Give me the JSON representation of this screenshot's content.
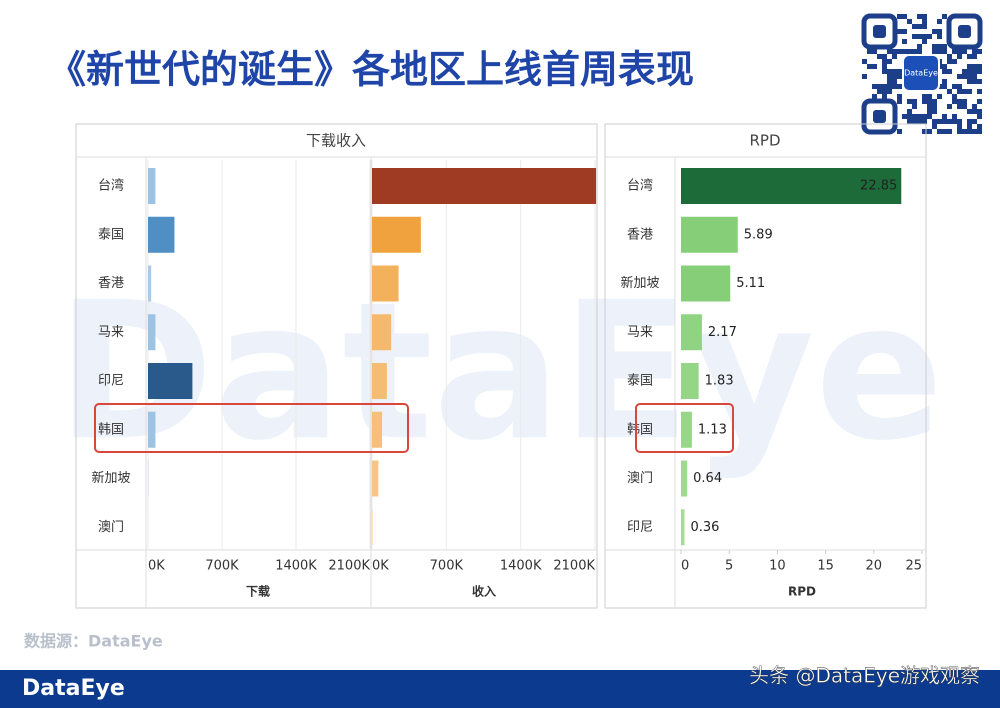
{
  "title": "《新世代的诞生》各地区上线首周表现",
  "source": "数据源：DataEye",
  "brand": "DataEye",
  "credit": "头条 @DataEye游戏观察",
  "watermark": "DataEye",
  "qr_label": "DataEye",
  "chart_data": [
    {
      "type": "hbar",
      "title": "下载收入",
      "xlabel": "下载",
      "categories": [
        "台湾",
        "泰国",
        "香港",
        "马来",
        "印尼",
        "韩国",
        "新加坡",
        "澳门"
      ],
      "values": [
        70000,
        250000,
        30000,
        70000,
        420000,
        70000,
        5000,
        1000
      ],
      "colors": [
        "#9cc3e4",
        "#4f8fc4",
        "#a9cbe8",
        "#9cc3e4",
        "#2a5a8c",
        "#9cc3e4",
        "#b8d4ec",
        "#bcd6ee"
      ],
      "xlim": [
        0,
        2100000
      ],
      "xticks": [
        {
          "value": 0,
          "label": "0K"
        },
        {
          "value": 700000,
          "label": "700K"
        },
        {
          "value": 1400000,
          "label": "1400K"
        },
        {
          "value": 2100000,
          "label": "2100K"
        }
      ],
      "grid": true
    },
    {
      "type": "hbar",
      "xlabel": "收入",
      "values": [
        2110000,
        460000,
        250000,
        180000,
        140000,
        95000,
        60000,
        5000
      ],
      "colors": [
        "#9e3b22",
        "#f0a23e",
        "#f3b15c",
        "#f4b96c",
        "#f5bd74",
        "#f5c07a",
        "#f6c685",
        "#f7cc90"
      ],
      "xlim": [
        0,
        2100000
      ],
      "xticks": [
        {
          "value": 0,
          "label": "0K"
        },
        {
          "value": 700000,
          "label": "700K"
        },
        {
          "value": 1400000,
          "label": "1400K"
        },
        {
          "value": 2100000,
          "label": "2100K"
        }
      ],
      "grid": true
    },
    {
      "type": "hbar",
      "title": "RPD",
      "xlabel": "RPD",
      "categories": [
        "台湾",
        "香港",
        "新加坡",
        "马来",
        "泰国",
        "韩国",
        "澳门",
        "印尼"
      ],
      "values": [
        22.85,
        5.89,
        5.11,
        2.17,
        1.83,
        1.13,
        0.64,
        0.36
      ],
      "colors": [
        "#1e6b3a",
        "#86cf78",
        "#86cf78",
        "#90d382",
        "#94d586",
        "#98d68a",
        "#a0da92",
        "#a6dc98"
      ],
      "xlim": [
        0,
        25
      ],
      "xticks": [
        0,
        5,
        10,
        15,
        20,
        25
      ],
      "data_labels": true,
      "grid": false
    }
  ]
}
